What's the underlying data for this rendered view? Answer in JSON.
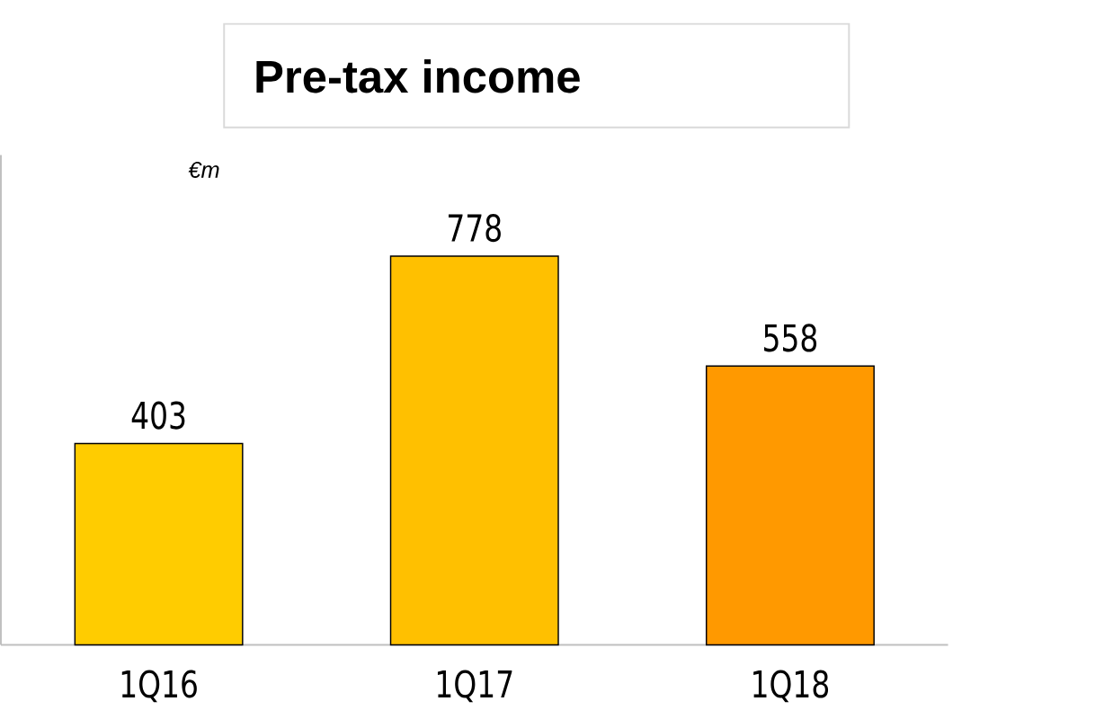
{
  "chart_data": {
    "type": "bar",
    "title": "Pre-tax income",
    "ylabel": "€m",
    "categories": [
      "1Q16",
      "1Q17",
      "1Q18"
    ],
    "values": [
      403,
      778,
      558
    ],
    "colors": [
      "#ffcc00",
      "#ffc000",
      "#ff9900"
    ],
    "data_labels": true
  }
}
